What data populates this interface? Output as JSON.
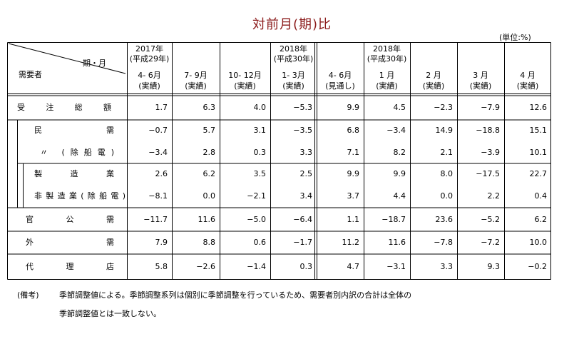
{
  "title": "対前月(期)比",
  "unit": "(単位:%)",
  "header": {
    "corner_top": "期・月",
    "corner_bottom": "需要者",
    "columns": [
      [
        "2017年",
        "(平成29年)",
        "4- 6月",
        "(実績)"
      ],
      [
        "",
        "",
        "7- 9月",
        "(実績)"
      ],
      [
        "",
        "",
        "10- 12月",
        "(実績)"
      ],
      [
        "2018年",
        "(平成30年)",
        "1- 3月",
        "(実績)"
      ],
      [
        "",
        "",
        "4- 6月",
        "(見通し)"
      ],
      [
        "2018年",
        "(平成30年)",
        "1 月",
        "(実績)"
      ],
      [
        "",
        "",
        "2 月",
        "(実績)"
      ],
      [
        "",
        "",
        "3 月",
        "(実績)"
      ],
      [
        "",
        "",
        "4 月",
        "(実績)"
      ]
    ]
  },
  "rows": [
    {
      "label": "受 注 総 額",
      "values": [
        "1.7",
        "6.3",
        "4.0",
        "−5.3",
        "9.9",
        "4.5",
        "−2.3",
        "−7.9",
        "12.6"
      ]
    },
    {
      "label": "民 需",
      "values": [
        "−0.7",
        "5.7",
        "3.1",
        "−3.5",
        "6.8",
        "−3.4",
        "14.9",
        "−18.8",
        "15.1"
      ]
    },
    {
      "label": "〃 (除船電)",
      "values": [
        "−3.4",
        "2.8",
        "0.3",
        "3.3",
        "7.1",
        "8.2",
        "2.1",
        "−3.9",
        "10.1"
      ]
    },
    {
      "label": "製 造 業",
      "values": [
        "2.6",
        "6.2",
        "3.5",
        "2.5",
        "9.9",
        "9.9",
        "8.0",
        "−17.5",
        "22.7"
      ]
    },
    {
      "label": "非製造業(除船電)",
      "values": [
        "−8.1",
        "0.0",
        "−2.1",
        "3.4",
        "3.7",
        "4.4",
        "0.0",
        "2.2",
        "0.4"
      ]
    },
    {
      "label": "官 公 需",
      "values": [
        "−11.7",
        "11.6",
        "−5.0",
        "−6.4",
        "1.1",
        "−18.7",
        "23.6",
        "−5.2",
        "6.2"
      ]
    },
    {
      "label": "外 需",
      "values": [
        "7.9",
        "8.8",
        "0.6",
        "−1.7",
        "11.2",
        "11.6",
        "−7.8",
        "−7.2",
        "10.0"
      ]
    },
    {
      "label": "代 理 店",
      "values": [
        "5.8",
        "−2.6",
        "−1.4",
        "0.3",
        "4.7",
        "−3.1",
        "3.3",
        "9.3",
        "−0.2"
      ]
    }
  ],
  "notes": {
    "label": "(備考)",
    "line1": "季節調整値による。季節調整系列は個別に季節調整を行っているため、需要者別内訳の合計は全体の",
    "line2": "季節調整値とは一致しない。"
  }
}
